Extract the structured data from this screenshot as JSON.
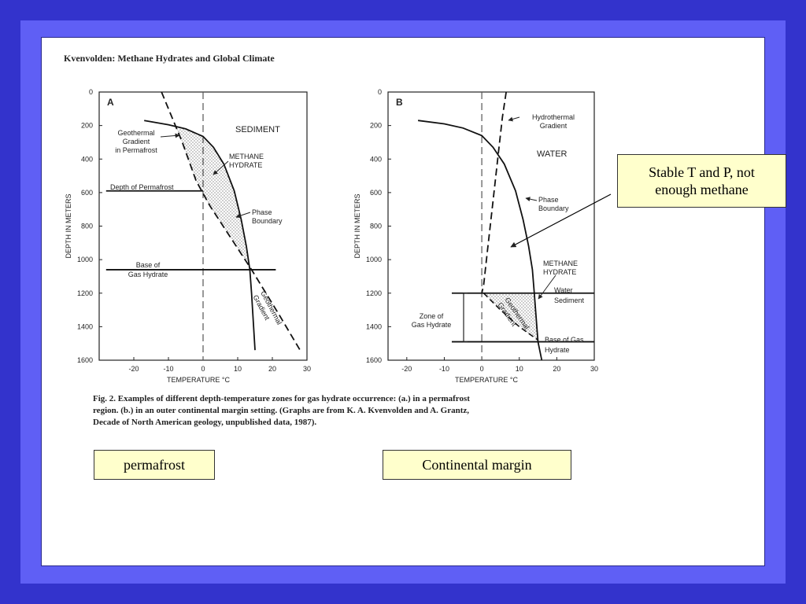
{
  "header": "Kvenvolden: Methane Hydrates and Global Climate",
  "caption_lines": [
    "Fig.  2.  Examples of different depth-temperature zones for gas hydrate occurrence:  (a.)  in a permafrost",
    "region.  (b.)  in an outer continental margin setting.  (Graphs are from K. A. Kvenvolden and A. Grantz,",
    "Decade of North American geology, unpublished data, 1987)."
  ],
  "boxes": {
    "permafrost": "permafrost",
    "continental_margin": "Continental margin",
    "stable_line1": "Stable T and P, not",
    "stable_line2": "enough methane"
  },
  "colors": {
    "background": "#3333cc",
    "frame": "#5f5ff5",
    "note_box": "#ffffcc"
  },
  "chart_data": [
    {
      "type": "line",
      "panel_label": "A",
      "xlabel": "TEMPERATURE °C",
      "ylabel": "DEPTH IN METERS",
      "xlim": [
        -30,
        30
      ],
      "ylim": [
        1600,
        0
      ],
      "x_ticks": [
        -20,
        -10,
        0,
        10,
        20,
        30
      ],
      "y_ticks": [
        0,
        200,
        400,
        600,
        800,
        1000,
        1200,
        1400,
        1600
      ],
      "annotations": {
        "sediment": "SEDIMENT",
        "geothermal_permafrost": [
          "Geothermal",
          "Gradient",
          "in Permafrost"
        ],
        "methane_hydrate": [
          "METHANE",
          "HYDRATE"
        ],
        "depth_permafrost": "Depth of Permafrost",
        "phase_boundary": [
          "Phase",
          "Boundary"
        ],
        "base_hydrate": [
          "Base of",
          "Gas Hydrate"
        ],
        "geothermal_gradient": [
          "Geothermal",
          "Gradient"
        ]
      },
      "series": [
        {
          "key": "phase_boundary",
          "x": [
            -17,
            -10,
            -5,
            0,
            3,
            6,
            9,
            11,
            12.5,
            13.5,
            14,
            15
          ],
          "y": [
            170,
            195,
            220,
            265,
            330,
            430,
            590,
            760,
            920,
            1060,
            1200,
            1540
          ]
        },
        {
          "key": "geothermal_gradient",
          "x": [
            -12,
            -6,
            -2,
            2,
            8,
            14,
            22,
            28
          ],
          "y": [
            0,
            300,
            530,
            680,
            870,
            1060,
            1330,
            1540
          ]
        },
        {
          "key": "temperature_zero",
          "x": [
            0,
            0
          ],
          "y": [
            0,
            1600
          ]
        }
      ],
      "horizontal_lines": [
        {
          "key": "depth_of_permafrost",
          "y": 590,
          "x": [
            -28,
            0
          ]
        },
        {
          "key": "base_of_gas_hydrate",
          "y": 1060,
          "x": [
            -28,
            21
          ]
        }
      ]
    },
    {
      "type": "line",
      "panel_label": "B",
      "xlabel": "TEMPERATURE °C",
      "ylabel": "DEPTH IN METERS",
      "xlim": [
        -25,
        30
      ],
      "ylim": [
        1600,
        0
      ],
      "x_ticks": [
        -20,
        -10,
        0,
        10,
        20,
        30
      ],
      "y_ticks": [
        0,
        200,
        400,
        600,
        800,
        1000,
        1200,
        1400,
        1600
      ],
      "annotations": {
        "hydrothermal_gradient": [
          "Hydrothermal",
          "Gradient"
        ],
        "water": "WATER",
        "phase_boundary": [
          "Phase",
          "Boundary"
        ],
        "methane_hydrate": [
          "METHANE",
          "HYDRATE"
        ],
        "water_sediment": [
          "Water",
          "Sediment"
        ],
        "zone_hydrate": [
          "Zone of",
          "Gas Hydrate"
        ],
        "geothermal_gradient": [
          "Geothermal",
          "Gradient"
        ],
        "base_gas_hydrate": [
          "Base of Gas",
          "Hydrate"
        ]
      },
      "series": [
        {
          "key": "phase_boundary",
          "x": [
            -17,
            -10,
            -5,
            0,
            3,
            6,
            9,
            11,
            12.5,
            13.5,
            14,
            15,
            16
          ],
          "y": [
            170,
            190,
            215,
            260,
            330,
            430,
            590,
            760,
            920,
            1060,
            1200,
            1490,
            1600
          ]
        },
        {
          "key": "hydrothermal_gradient",
          "x": [
            6.5,
            5.5,
            4.5,
            3,
            1.5,
            0.5,
            0
          ],
          "y": [
            0,
            150,
            350,
            650,
            950,
            1150,
            1200
          ]
        },
        {
          "key": "geothermal_gradient_sediment",
          "x": [
            0.5,
            5,
            10,
            15
          ],
          "y": [
            1200,
            1300,
            1400,
            1480
          ]
        },
        {
          "key": "temperature_zero",
          "x": [
            0,
            0
          ],
          "y": [
            0,
            1600
          ]
        }
      ],
      "horizontal_lines": [
        {
          "key": "water_sediment_interface",
          "y": 1200,
          "x": [
            -8,
            30
          ]
        },
        {
          "key": "base_of_gas_hydrate",
          "y": 1490,
          "x": [
            -8,
            30
          ]
        }
      ]
    }
  ]
}
